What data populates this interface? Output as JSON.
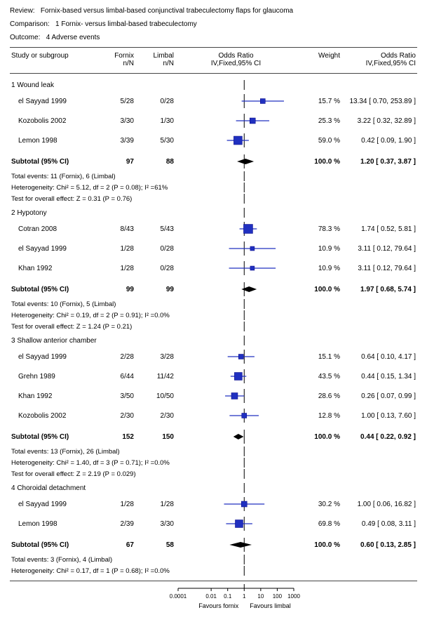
{
  "header": {
    "review_label": "Review:",
    "review": "Fornix-based versus limbal-based conjunctival trabeculectomy flaps for glaucoma",
    "comparison_label": "Comparison:",
    "comparison": "1 Fornix- versus limbal-based trabeculectomy",
    "outcome_label": "Outcome:",
    "outcome": "4 Adverse events"
  },
  "columns": {
    "study_top": "Study or subgroup",
    "fornix_top": "Fornix",
    "fornix_bot": "n/N",
    "limbal_top": "Limbal",
    "limbal_bot": "n/N",
    "or_top": "Odds Ratio",
    "or_bot": "IV,Fixed,95% CI",
    "weight_top": "Weight",
    "or2_top": "Odds Ratio",
    "or2_bot": "IV,Fixed,95% CI"
  },
  "plot": {
    "xmin_log": -4,
    "xmax_log": 3,
    "ticks": [
      {
        "v": -4,
        "l": "0.0001"
      },
      {
        "v": -2,
        "l": "0.01"
      },
      {
        "v": -1,
        "l": "0.1"
      },
      {
        "v": 0,
        "l": "1"
      },
      {
        "v": 1,
        "l": "10"
      },
      {
        "v": 2,
        "l": "100"
      },
      {
        "v": 3,
        "l": "1000"
      }
    ],
    "fav_left": "Favours fornix",
    "fav_right": "Favours limbal",
    "marker_color": "#2030c0",
    "marker_border": "#000080",
    "ci_color": "#2030c0",
    "diamond_fill": "#000000"
  },
  "groups": [
    {
      "title": "1 Wound leak",
      "studies": [
        {
          "name": "el Sayyad 1999",
          "fornix": "5/28",
          "limbal": "0/28",
          "weight": "15.7 %",
          "or_text": "13.34 [ 0.70, 253.89 ]",
          "pt": 13.34,
          "lo": 0.7,
          "hi": 253.89,
          "sz": 7
        },
        {
          "name": "Kozobolis 2002",
          "fornix": "3/30",
          "limbal": "1/30",
          "weight": "25.3 %",
          "or_text": "3.22 [ 0.32, 32.89 ]",
          "pt": 3.22,
          "lo": 0.32,
          "hi": 32.89,
          "sz": 8
        },
        {
          "name": "Lemon 1998",
          "fornix": "3/39",
          "limbal": "5/30",
          "weight": "59.0 %",
          "or_text": "0.42 [ 0.09, 1.90 ]",
          "pt": 0.42,
          "lo": 0.09,
          "hi": 1.9,
          "sz": 12
        }
      ],
      "subtotal": {
        "fornix": "97",
        "limbal": "88",
        "weight": "100.0 %",
        "or_text": "1.20 [ 0.37, 3.87 ]",
        "pt": 1.2,
        "lo": 0.37,
        "hi": 3.87
      },
      "notes": [
        "Total events: 11 (Fornix), 6 (Limbal)",
        "Heterogeneity: Chi² = 5.12, df = 2 (P = 0.08); I² =61%",
        "Test for overall effect: Z = 0.31 (P = 0.76)"
      ]
    },
    {
      "title": "2 Hypotony",
      "studies": [
        {
          "name": "Cotran 2008",
          "fornix": "8/43",
          "limbal": "5/43",
          "weight": "78.3 %",
          "or_text": "1.74 [ 0.52, 5.81 ]",
          "pt": 1.74,
          "lo": 0.52,
          "hi": 5.81,
          "sz": 13
        },
        {
          "name": "el Sayyad 1999",
          "fornix": "1/28",
          "limbal": "0/28",
          "weight": "10.9 %",
          "or_text": "3.11 [ 0.12, 79.64 ]",
          "pt": 3.11,
          "lo": 0.12,
          "hi": 79.64,
          "sz": 6
        },
        {
          "name": "Khan 1992",
          "fornix": "1/28",
          "limbal": "0/28",
          "weight": "10.9 %",
          "or_text": "3.11 [ 0.12, 79.64 ]",
          "pt": 3.11,
          "lo": 0.12,
          "hi": 79.64,
          "sz": 6
        }
      ],
      "subtotal": {
        "fornix": "99",
        "limbal": "99",
        "weight": "100.0 %",
        "or_text": "1.97 [ 0.68, 5.74 ]",
        "pt": 1.97,
        "lo": 0.68,
        "hi": 5.74
      },
      "notes": [
        "Total events: 10 (Fornix), 5 (Limbal)",
        "Heterogeneity: Chi² = 0.19, df = 2 (P = 0.91); I² =0.0%",
        "Test for overall effect: Z = 1.24 (P = 0.21)"
      ]
    },
    {
      "title": "3 Shallow anterior chamber",
      "studies": [
        {
          "name": "el Sayyad 1999",
          "fornix": "2/28",
          "limbal": "3/28",
          "weight": "15.1 %",
          "or_text": "0.64 [ 0.10, 4.17 ]",
          "pt": 0.64,
          "lo": 0.1,
          "hi": 4.17,
          "sz": 7
        },
        {
          "name": "Grehn 1989",
          "fornix": "6/44",
          "limbal": "11/42",
          "weight": "43.5 %",
          "or_text": "0.44 [ 0.15, 1.34 ]",
          "pt": 0.44,
          "lo": 0.15,
          "hi": 1.34,
          "sz": 11
        },
        {
          "name": "Khan 1992",
          "fornix": "3/50",
          "limbal": "10/50",
          "weight": "28.6 %",
          "or_text": "0.26 [ 0.07, 0.99 ]",
          "pt": 0.26,
          "lo": 0.07,
          "hi": 0.99,
          "sz": 9
        },
        {
          "name": "Kozobolis 2002",
          "fornix": "2/30",
          "limbal": "2/30",
          "weight": "12.8 %",
          "or_text": "1.00 [ 0.13, 7.60 ]",
          "pt": 1.0,
          "lo": 0.13,
          "hi": 7.6,
          "sz": 7
        }
      ],
      "subtotal": {
        "fornix": "152",
        "limbal": "150",
        "weight": "100.0 %",
        "or_text": "0.44 [ 0.22, 0.92 ]",
        "pt": 0.44,
        "lo": 0.22,
        "hi": 0.92
      },
      "notes": [
        "Total events: 13 (Fornix), 26 (Limbal)",
        "Heterogeneity: Chi² = 1.40, df = 3 (P = 0.71); I² =0.0%",
        "Test for overall effect: Z = 2.19 (P = 0.029)"
      ]
    },
    {
      "title": "4 Choroidal detachment",
      "studies": [
        {
          "name": "el Sayyad 1999",
          "fornix": "1/28",
          "limbal": "1/28",
          "weight": "30.2 %",
          "or_text": "1.00 [ 0.06, 16.82 ]",
          "pt": 1.0,
          "lo": 0.06,
          "hi": 16.82,
          "sz": 8
        },
        {
          "name": "Lemon 1998",
          "fornix": "2/39",
          "limbal": "3/30",
          "weight": "69.8 %",
          "or_text": "0.49 [ 0.08, 3.11 ]",
          "pt": 0.49,
          "lo": 0.08,
          "hi": 3.11,
          "sz": 11
        }
      ],
      "subtotal": {
        "fornix": "67",
        "limbal": "58",
        "weight": "100.0 %",
        "or_text": "0.60 [ 0.13, 2.85 ]",
        "pt": 0.6,
        "lo": 0.13,
        "hi": 2.85
      },
      "notes": [
        "Total events: 3 (Fornix), 4 (Limbal)",
        "Heterogeneity: Chi² = 0.17, df = 1 (P = 0.68); I² =0.0%"
      ]
    }
  ],
  "subtotal_label": "Subtotal (95% CI)"
}
